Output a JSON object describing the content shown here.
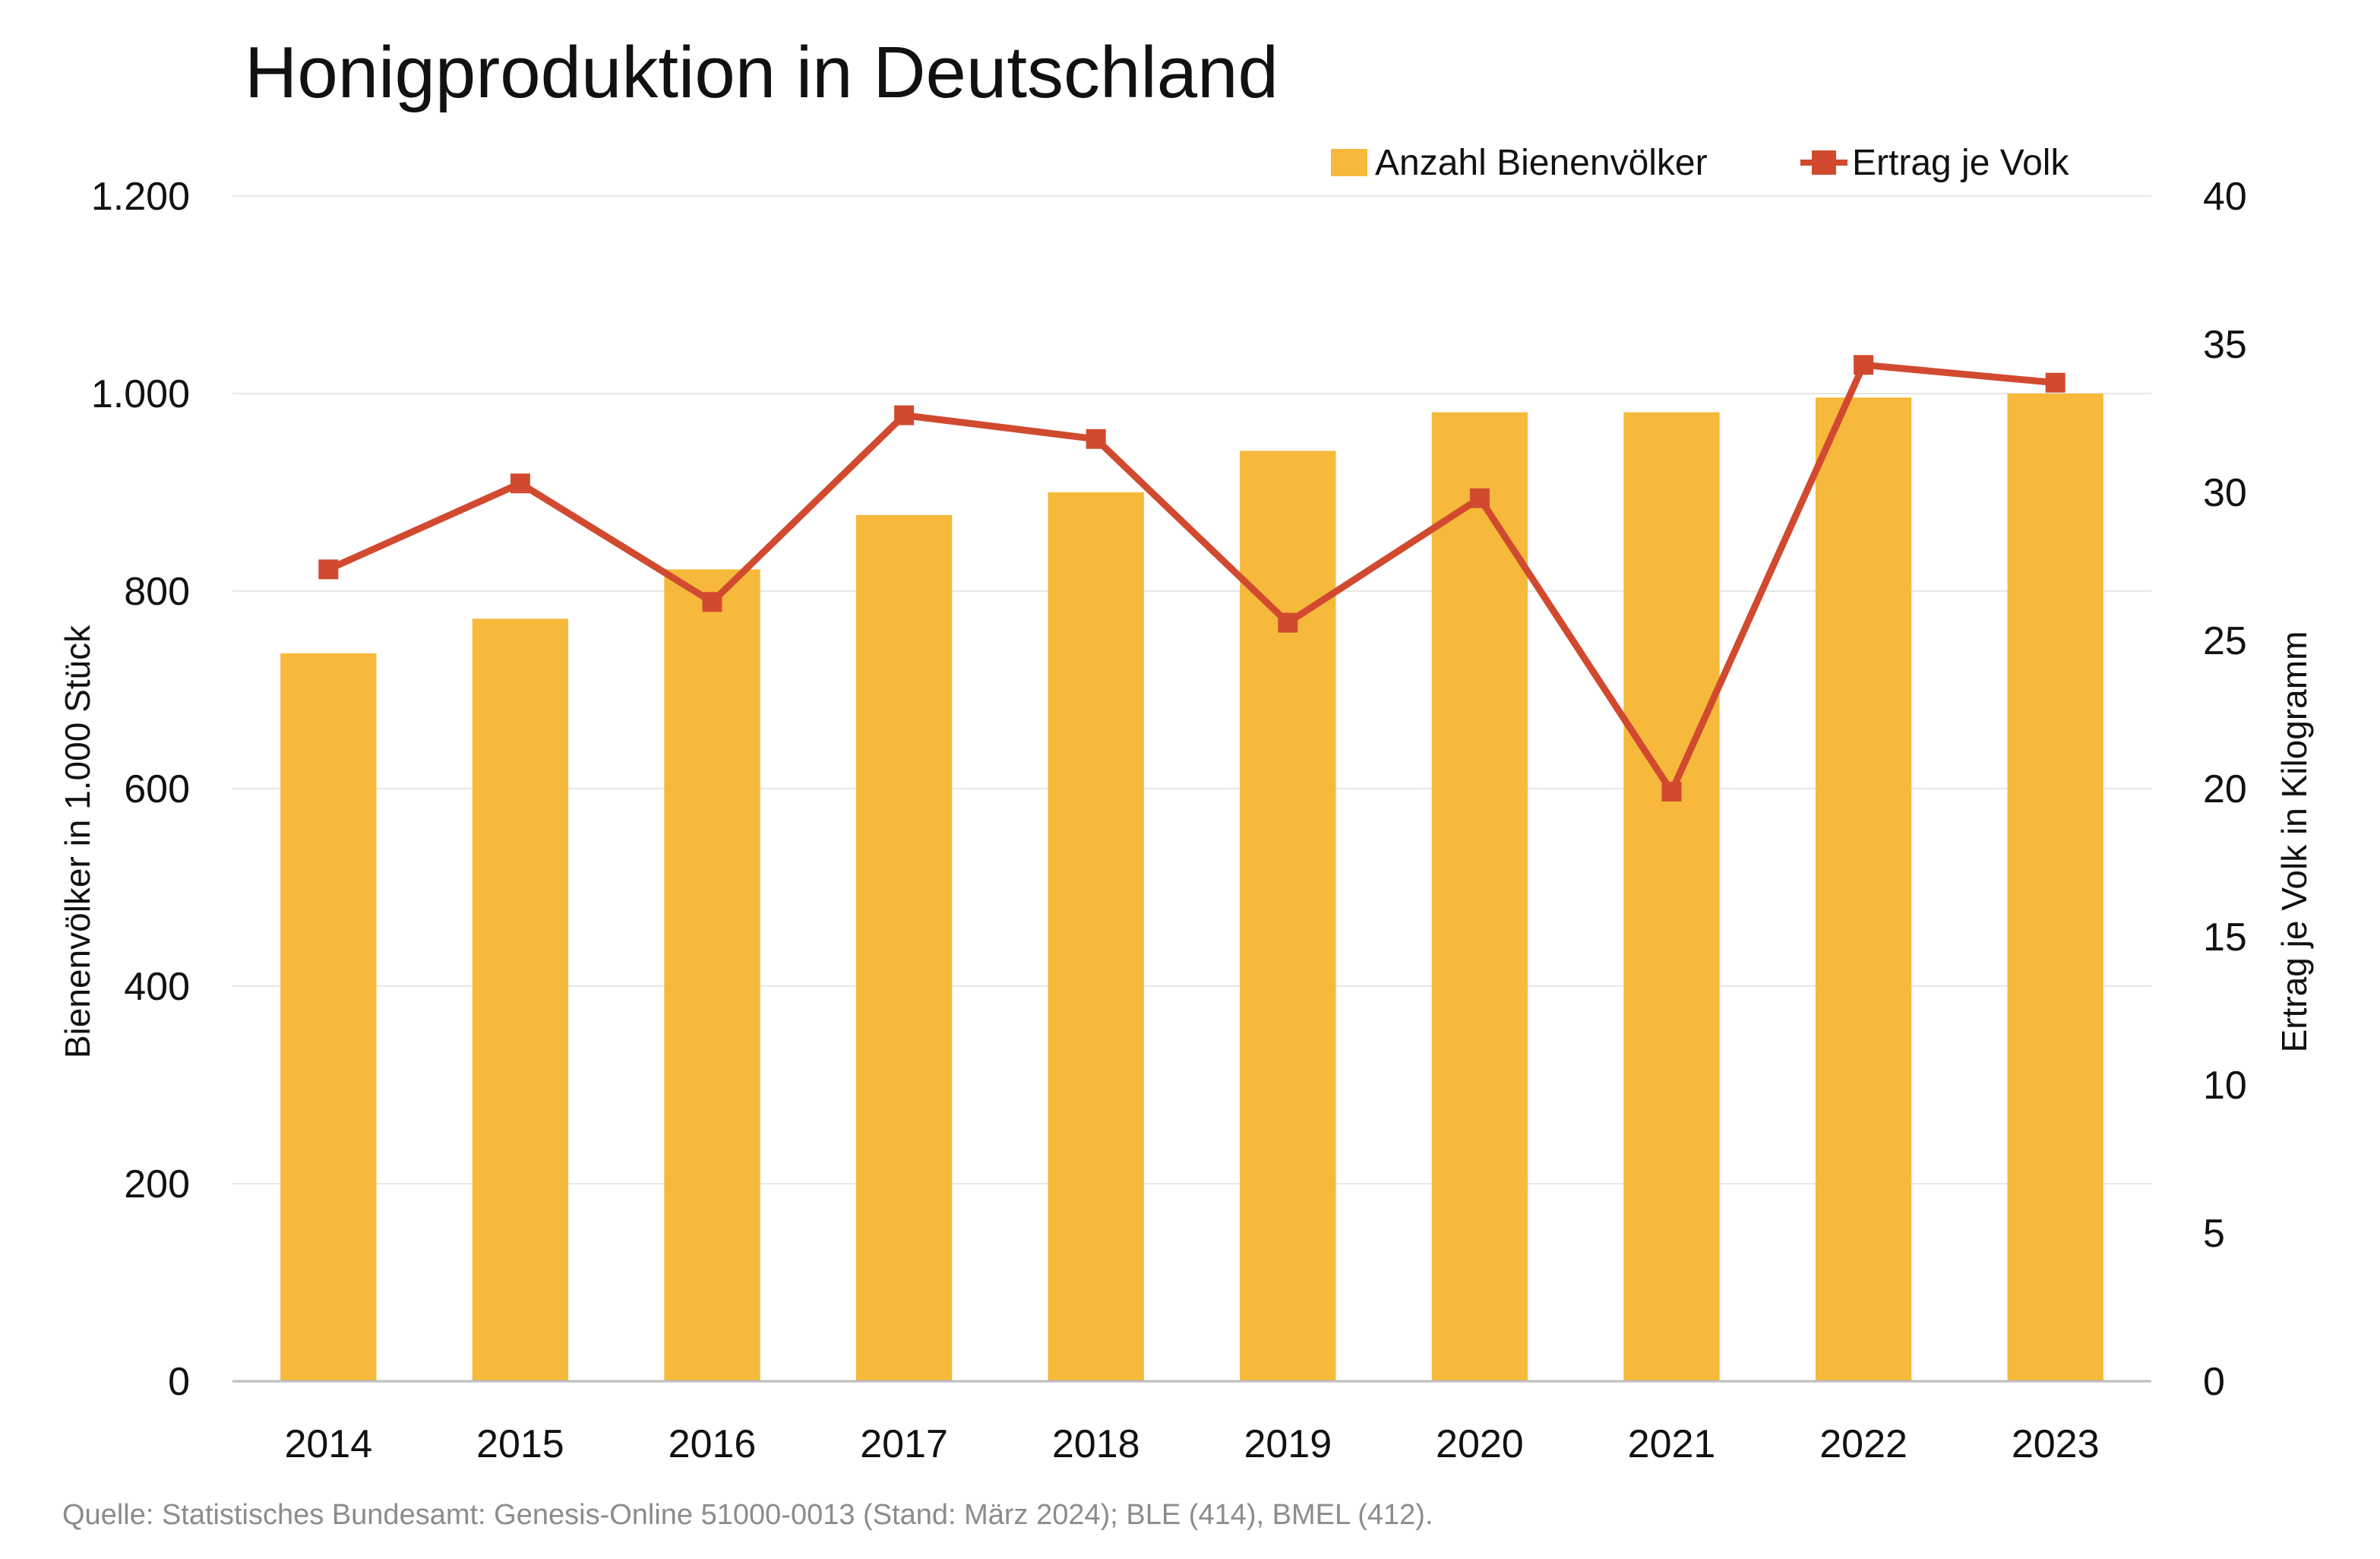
{
  "chart_data": {
    "type": "bar",
    "title": "Honigproduktion in Deutschland",
    "source": "Quelle: Statistisches Bundesamt: Genesis-Online 51000-0013 (Stand: März 2024); BLE (414), BMEL (412).",
    "categories": [
      "2014",
      "2015",
      "2016",
      "2017",
      "2018",
      "2019",
      "2020",
      "2021",
      "2022",
      "2023"
    ],
    "y_left": {
      "label": "Bienenvölker in 1.000 Stück",
      "ylim": [
        0,
        1200
      ],
      "ticks": [
        0,
        200,
        400,
        600,
        800,
        1000,
        1200
      ],
      "tick_labels": [
        "0",
        "200",
        "400",
        "600",
        "800",
        "1.000",
        "1.200"
      ]
    },
    "y_right": {
      "label": "Ertrag je Volk in Kilogramm",
      "ylim": [
        0,
        40
      ],
      "ticks": [
        0,
        5,
        10,
        15,
        20,
        25,
        30,
        35,
        40
      ],
      "tick_labels": [
        "0",
        "5",
        "10",
        "15",
        "20",
        "25",
        "30",
        "35",
        "40"
      ]
    },
    "series": [
      {
        "name": "Anzahl Bienenvölker",
        "type": "bar",
        "axis": "left",
        "color": "#f6b93b",
        "values": [
          737,
          772,
          822,
          877,
          900,
          942,
          981,
          981,
          996,
          1000
        ]
      },
      {
        "name": "Ertrag je Volk",
        "type": "line",
        "axis": "right",
        "color": "#d14a2f",
        "values": [
          27.4,
          30.3,
          26.3,
          32.6,
          31.8,
          25.6,
          29.8,
          19.9,
          34.3,
          33.7
        ]
      }
    ],
    "grid": true,
    "legend": "top-right"
  }
}
